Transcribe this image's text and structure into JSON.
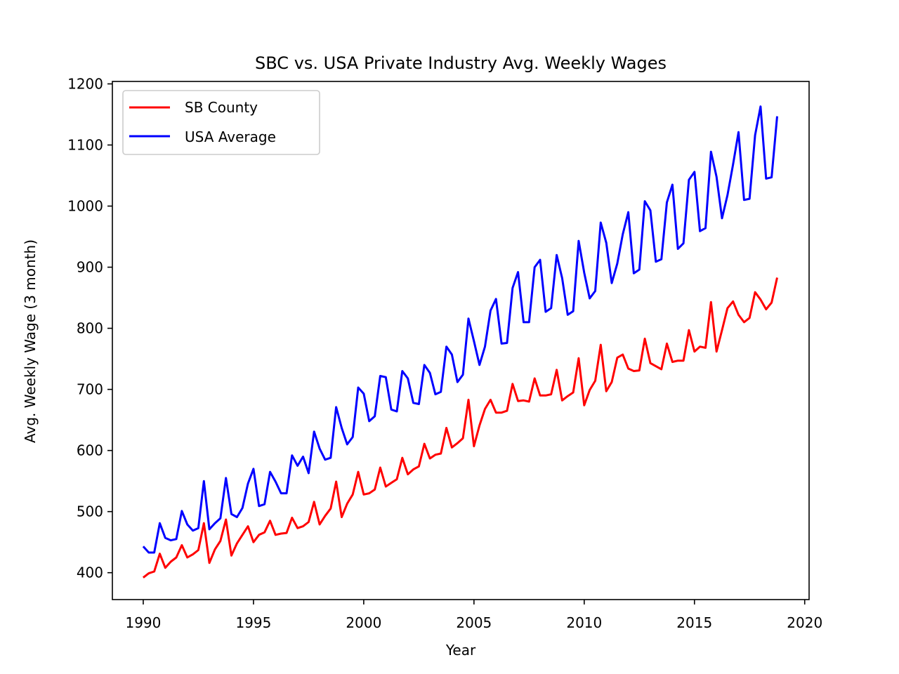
{
  "chart_data": {
    "type": "line",
    "title": "SBC vs. USA Private Industry Avg. Weekly Wages",
    "xlabel": "Year",
    "ylabel": "Avg. Weekly Wage (3 month)",
    "xlim": [
      1988.6,
      2020.2
    ],
    "ylim": [
      356,
      1204
    ],
    "xticks": [
      1990,
      1995,
      2000,
      2005,
      2010,
      2015,
      2020
    ],
    "xtick_labels": [
      "1990",
      "1995",
      "2000",
      "2005",
      "2010",
      "2015",
      "2020"
    ],
    "yticks": [
      400,
      500,
      600,
      700,
      800,
      900,
      1000,
      1100,
      1200
    ],
    "ytick_labels": [
      "400",
      "500",
      "600",
      "700",
      "800",
      "900",
      "1000",
      "1100",
      "1200"
    ],
    "grid": false,
    "legend": "top-left",
    "series": [
      {
        "name": "SB County",
        "color": "#ff0000",
        "x": [
          1990.0,
          1990.25,
          1990.5,
          1990.75,
          1991.0,
          1991.25,
          1991.5,
          1991.75,
          1992.0,
          1992.25,
          1992.5,
          1992.75,
          1993.0,
          1993.25,
          1993.5,
          1993.75,
          1994.0,
          1994.25,
          1994.5,
          1994.75,
          1995.0,
          1995.25,
          1995.5,
          1995.75,
          1996.0,
          1996.25,
          1996.5,
          1996.75,
          1997.0,
          1997.25,
          1997.5,
          1997.75,
          1998.0,
          1998.25,
          1998.5,
          1998.75,
          1999.0,
          1999.25,
          1999.5,
          1999.75,
          2000.0,
          2000.25,
          2000.5,
          2000.75,
          2001.0,
          2001.25,
          2001.5,
          2001.75,
          2002.0,
          2002.25,
          2002.5,
          2002.75,
          2003.0,
          2003.25,
          2003.5,
          2003.75,
          2004.0,
          2004.25,
          2004.5,
          2004.75,
          2005.0,
          2005.25,
          2005.5,
          2005.75,
          2006.0,
          2006.25,
          2006.5,
          2006.75,
          2007.0,
          2007.25,
          2007.5,
          2007.75,
          2008.0,
          2008.25,
          2008.5,
          2008.75,
          2009.0,
          2009.25,
          2009.5,
          2009.75,
          2010.0,
          2010.25,
          2010.5,
          2010.75,
          2011.0,
          2011.25,
          2011.5,
          2011.75,
          2012.0,
          2012.25,
          2012.5,
          2012.75,
          2013.0,
          2013.25,
          2013.5,
          2013.75,
          2014.0,
          2014.25,
          2014.5,
          2014.75,
          2015.0,
          2015.25,
          2015.5,
          2015.75,
          2016.0,
          2016.25,
          2016.5,
          2016.75,
          2017.0,
          2017.25,
          2017.5,
          2017.75,
          2018.0,
          2018.25,
          2018.5,
          2018.75
        ],
        "values": [
          392,
          399,
          402,
          431,
          408,
          418,
          425,
          445,
          425,
          430,
          437,
          481,
          416,
          438,
          452,
          487,
          428,
          448,
          462,
          476,
          450,
          462,
          466,
          485,
          462,
          464,
          465,
          490,
          473,
          476,
          483,
          516,
          479,
          493,
          505,
          549,
          491,
          513,
          528,
          565,
          528,
          530,
          536,
          572,
          541,
          547,
          553,
          588,
          561,
          569,
          574,
          611,
          587,
          593,
          595,
          637,
          605,
          612,
          620,
          683,
          607,
          641,
          668,
          683,
          662,
          662,
          665,
          709,
          681,
          682,
          680,
          718,
          690,
          690,
          692,
          732,
          682,
          689,
          695,
          751,
          674,
          699,
          714,
          773,
          697,
          712,
          752,
          757,
          734,
          730,
          731,
          783,
          743,
          738,
          733,
          775,
          745,
          747,
          747,
          797,
          762,
          770,
          768,
          843,
          762,
          797,
          833,
          844,
          822,
          810,
          817,
          859,
          847,
          831,
          842,
          883
        ]
      },
      {
        "name": "USA Average",
        "color": "#0000ff",
        "x": [
          1990.0,
          1990.25,
          1990.5,
          1990.75,
          1991.0,
          1991.25,
          1991.5,
          1991.75,
          1992.0,
          1992.25,
          1992.5,
          1992.75,
          1993.0,
          1993.25,
          1993.5,
          1993.75,
          1994.0,
          1994.25,
          1994.5,
          1994.75,
          1995.0,
          1995.25,
          1995.5,
          1995.75,
          1996.0,
          1996.25,
          1996.5,
          1996.75,
          1997.0,
          1997.25,
          1997.5,
          1997.75,
          1998.0,
          1998.25,
          1998.5,
          1998.75,
          1999.0,
          1999.25,
          1999.5,
          1999.75,
          2000.0,
          2000.25,
          2000.5,
          2000.75,
          2001.0,
          2001.25,
          2001.5,
          2001.75,
          2002.0,
          2002.25,
          2002.5,
          2002.75,
          2003.0,
          2003.25,
          2003.5,
          2003.75,
          2004.0,
          2004.25,
          2004.5,
          2004.75,
          2005.0,
          2005.25,
          2005.5,
          2005.75,
          2006.0,
          2006.25,
          2006.5,
          2006.75,
          2007.0,
          2007.25,
          2007.5,
          2007.75,
          2008.0,
          2008.25,
          2008.5,
          2008.75,
          2009.0,
          2009.25,
          2009.5,
          2009.75,
          2010.0,
          2010.25,
          2010.5,
          2010.75,
          2011.0,
          2011.25,
          2011.5,
          2011.75,
          2012.0,
          2012.25,
          2012.5,
          2012.75,
          2013.0,
          2013.25,
          2013.5,
          2013.75,
          2014.0,
          2014.25,
          2014.5,
          2014.75,
          2015.0,
          2015.25,
          2015.5,
          2015.75,
          2016.0,
          2016.25,
          2016.5,
          2016.75,
          2017.0,
          2017.25,
          2017.5,
          2017.75,
          2018.0,
          2018.25,
          2018.5,
          2018.75
        ],
        "values": [
          443,
          433,
          433,
          481,
          457,
          453,
          455,
          501,
          479,
          469,
          473,
          550,
          471,
          481,
          489,
          555,
          496,
          491,
          506,
          546,
          570,
          509,
          512,
          565,
          549,
          530,
          530,
          592,
          575,
          590,
          563,
          631,
          603,
          585,
          588,
          671,
          637,
          610,
          622,
          703,
          693,
          648,
          656,
          722,
          720,
          667,
          664,
          730,
          718,
          678,
          676,
          740,
          727,
          692,
          696,
          770,
          757,
          712,
          724,
          816,
          779,
          740,
          770,
          829,
          848,
          775,
          776,
          866,
          892,
          810,
          810,
          900,
          912,
          827,
          833,
          920,
          882,
          822,
          828,
          943,
          891,
          849,
          861,
          973,
          940,
          874,
          906,
          954,
          990,
          890,
          896,
          1008,
          993,
          909,
          913,
          1006,
          1035,
          930,
          939,
          1043,
          1056,
          959,
          964,
          1089,
          1048,
          980,
          1018,
          1068,
          1121,
          1010,
          1012,
          1116,
          1163,
          1045,
          1047,
          1147
        ]
      }
    ]
  }
}
